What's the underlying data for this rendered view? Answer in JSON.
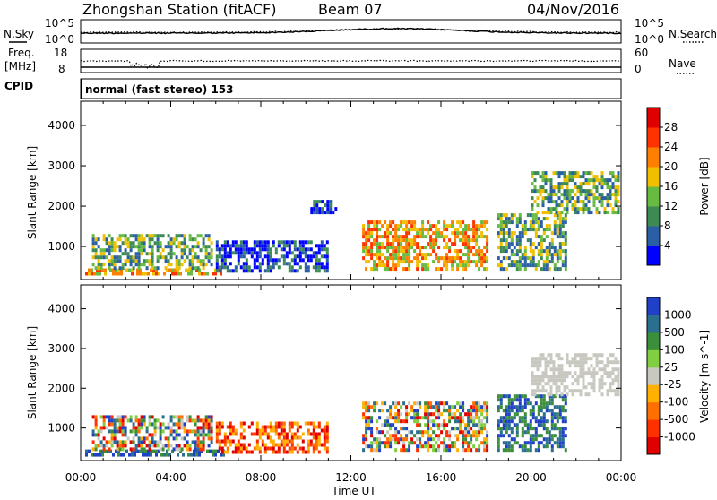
{
  "header": {
    "station": "Zhongshan Station (fitACF)",
    "beam": "Beam 07",
    "date": "04/Nov/2016"
  },
  "strip_panels": {
    "nsky_label": "N.Sky",
    "nsearch_label": "N.Search",
    "freq_label_1": "Freq.",
    "freq_label_2": "[MHz]",
    "nave_label": "Nave",
    "cpid_label": "CPID",
    "cpid_text": "normal (fast stereo) 153",
    "noise_left_ticks": [
      "10^5",
      "10^0"
    ],
    "noise_right_ticks": [
      "10^5",
      "10^0"
    ],
    "freq_ticks": [
      "18",
      "8"
    ],
    "nave_ticks": [
      "60",
      "0"
    ]
  },
  "colors": {
    "power_scale": [
      "#0000ff",
      "#2a5fa6",
      "#3d8a55",
      "#66bb40",
      "#f0c000",
      "#ff8000",
      "#ff3300",
      "#e00000"
    ],
    "velocity_scale": [
      "#2040c8",
      "#2a6f8f",
      "#3b8f3b",
      "#7fcf40",
      "#c8c8c0",
      "#ffb000",
      "#ff7000",
      "#ff3000",
      "#e00000"
    ],
    "ground_scatter": "#c8c8c0"
  },
  "chart_data": [
    {
      "type": "heatmap",
      "name": "power",
      "xlabel": "Time UT",
      "ylabel": "Slant Range [km]",
      "colorbar_label": "Power [dB]",
      "colorbar_ticks": [
        "4",
        "8",
        "12",
        "16",
        "20",
        "24",
        "28"
      ],
      "x_ticks": [
        "00:00",
        "04:00",
        "08:00",
        "12:00",
        "16:00",
        "20:00",
        "00:00"
      ],
      "y_ticks": [
        "1000",
        "2000",
        "3000",
        "4000"
      ],
      "xlim": [
        0,
        24
      ],
      "ylim": [
        180,
        4600
      ],
      "regions": [
        {
          "t": [
            0.2,
            6.3
          ],
          "r": [
            280,
            420
          ],
          "level": "high"
        },
        {
          "t": [
            0.5,
            5.8
          ],
          "r": [
            420,
            1250
          ],
          "level": "medium"
        },
        {
          "t": [
            6.0,
            11.0
          ],
          "r": [
            350,
            1100
          ],
          "level": "low"
        },
        {
          "t": [
            10.2,
            11.3
          ],
          "r": [
            1800,
            2100
          ],
          "level": "low"
        },
        {
          "t": [
            12.5,
            18.0
          ],
          "r": [
            400,
            1600
          ],
          "level": "high"
        },
        {
          "t": [
            18.5,
            21.5
          ],
          "r": [
            400,
            1800
          ],
          "level": "medium"
        },
        {
          "t": [
            20.0,
            24.0
          ],
          "r": [
            1800,
            2800
          ],
          "level": "medium"
        }
      ]
    },
    {
      "type": "heatmap",
      "name": "velocity",
      "xlabel": "Time UT",
      "ylabel": "Slant Range [km]",
      "colorbar_label": "Velocity [m s^-1]",
      "colorbar_ticks": [
        "-1000",
        "-500",
        "-100",
        "-25",
        "25",
        "100",
        "500",
        "1000"
      ],
      "x_ticks": [
        "00:00",
        "04:00",
        "08:00",
        "12:00",
        "16:00",
        "20:00",
        "00:00"
      ],
      "y_ticks": [
        "1000",
        "2000",
        "3000",
        "4000"
      ],
      "xlim": [
        0,
        24
      ],
      "ylim": [
        180,
        4600
      ],
      "regions": [
        {
          "t": [
            0.2,
            6.3
          ],
          "r": [
            280,
            420
          ],
          "level": "positive"
        },
        {
          "t": [
            0.5,
            5.8
          ],
          "r": [
            420,
            1250
          ],
          "level": "mixed"
        },
        {
          "t": [
            6.0,
            11.0
          ],
          "r": [
            350,
            1100
          ],
          "level": "negative"
        },
        {
          "t": [
            12.5,
            18.0
          ],
          "r": [
            400,
            1600
          ],
          "level": "mixed"
        },
        {
          "t": [
            18.5,
            21.5
          ],
          "r": [
            400,
            1800
          ],
          "level": "positive"
        },
        {
          "t": [
            20.0,
            24.0
          ],
          "r": [
            1800,
            2800
          ],
          "level": "ground"
        }
      ]
    }
  ]
}
